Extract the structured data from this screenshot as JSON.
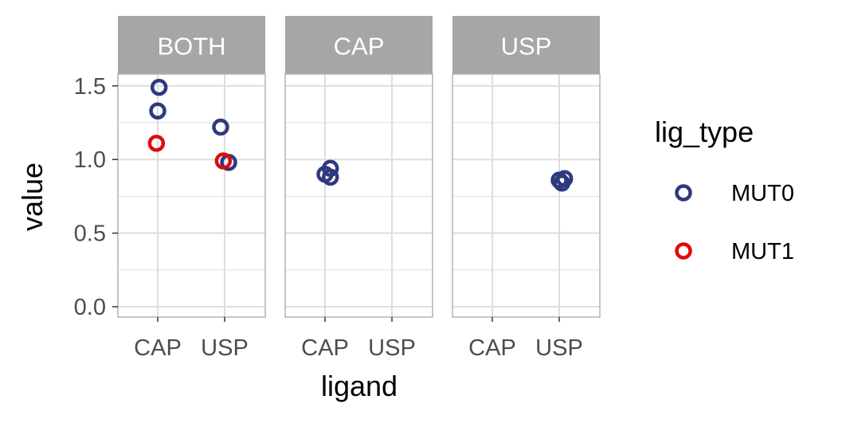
{
  "chart_data": {
    "type": "scatter",
    "facet_variable": "",
    "panels": [
      "BOTH",
      "CAP",
      "USP"
    ],
    "categories": [
      "CAP",
      "USP"
    ],
    "xlabel": "ligand",
    "ylabel": "value",
    "ylim": [
      -0.07,
      1.58
    ],
    "yticks": [
      0.0,
      0.5,
      1.0,
      1.5
    ],
    "ytick_labels": [
      "0.0",
      "0.5",
      "1.0",
      "1.5"
    ],
    "grid": true,
    "legend": {
      "title": "lig_type",
      "position": "right",
      "entries": [
        "MUT0",
        "MUT1"
      ]
    },
    "colors": {
      "MUT0": "#2e3a7d",
      "MUT1": "#e00b0b",
      "strip_bg": "#a6a6a6",
      "strip_text": "#ffffff",
      "panel_border": "#b3b3b3",
      "grid": "#dedede"
    },
    "series": [
      {
        "name": "MUT0",
        "points": [
          {
            "panel": "BOTH",
            "x": "CAP",
            "jitter": 0.02,
            "y": 1.49
          },
          {
            "panel": "BOTH",
            "x": "CAP",
            "jitter": 0.0,
            "y": 1.33
          },
          {
            "panel": "BOTH",
            "x": "USP",
            "jitter": -0.06,
            "y": 1.22
          },
          {
            "panel": "BOTH",
            "x": "USP",
            "jitter": 0.06,
            "y": 0.98
          },
          {
            "panel": "CAP",
            "x": "CAP",
            "jitter": 0.08,
            "y": 0.94
          },
          {
            "panel": "CAP",
            "x": "CAP",
            "jitter": 0.0,
            "y": 0.9
          },
          {
            "panel": "CAP",
            "x": "CAP",
            "jitter": 0.08,
            "y": 0.88
          },
          {
            "panel": "USP",
            "x": "USP",
            "jitter": 0.08,
            "y": 0.87
          },
          {
            "panel": "USP",
            "x": "USP",
            "jitter": 0.0,
            "y": 0.86
          },
          {
            "panel": "USP",
            "x": "USP",
            "jitter": 0.04,
            "y": 0.84
          }
        ]
      },
      {
        "name": "MUT1",
        "points": [
          {
            "panel": "BOTH",
            "x": "CAP",
            "jitter": -0.02,
            "y": 1.11
          },
          {
            "panel": "BOTH",
            "x": "USP",
            "jitter": -0.02,
            "y": 0.99
          }
        ]
      }
    ]
  }
}
